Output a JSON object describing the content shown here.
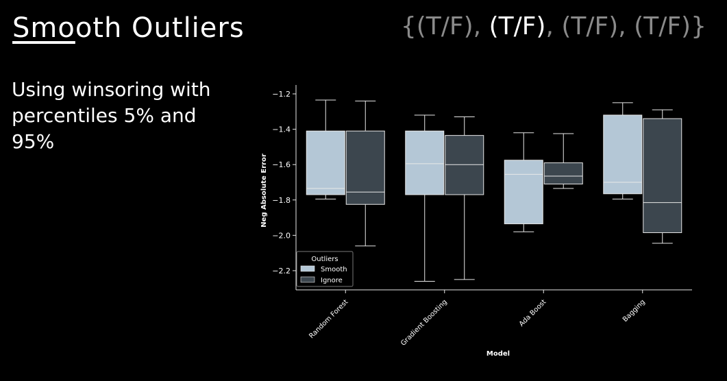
{
  "slide": {
    "title_underlined": "Smo",
    "title_rest": "oth Outliers",
    "flags": [
      {
        "text": "{(T/F), ",
        "highlight": false
      },
      {
        "text": "(T/F)",
        "highlight": true
      },
      {
        "text": ", (T/F), (T/F)}",
        "highlight": false
      }
    ],
    "body": "Using winsoring with percentiles 5% and 95%"
  },
  "colors": {
    "smooth": "#b4c7d6",
    "ignore": "#3c464e",
    "line": "#e8e8e8",
    "text": "#ffffff"
  },
  "chart_data": {
    "type": "boxplot",
    "xlabel": "Model",
    "ylabel": "Neg Absolute Error",
    "categories": [
      "Random Forest",
      "Gradient Boosting",
      "Ada Boost",
      "Bagging"
    ],
    "ylim": [
      -2.28,
      -1.2
    ],
    "yticks": [
      -1.2,
      -1.4,
      -1.6,
      -1.8,
      -2.0,
      -2.2
    ],
    "legend": {
      "title": "Outliers",
      "placement": "lower-left"
    },
    "series": [
      {
        "name": "Smooth",
        "boxes": [
          {
            "whislo": -1.795,
            "q1": -1.77,
            "med": -1.735,
            "q3": -1.41,
            "whishi": -1.235
          },
          {
            "whislo": -2.26,
            "q1": -1.77,
            "med": -1.595,
            "q3": -1.41,
            "whishi": -1.32
          },
          {
            "whislo": -1.98,
            "q1": -1.935,
            "med": -1.655,
            "q3": -1.575,
            "whishi": -1.42
          },
          {
            "whislo": -1.795,
            "q1": -1.765,
            "med": -1.7,
            "q3": -1.32,
            "whishi": -1.25
          }
        ]
      },
      {
        "name": "Ignore",
        "boxes": [
          {
            "whislo": -2.06,
            "q1": -1.825,
            "med": -1.755,
            "q3": -1.41,
            "whishi": -1.24
          },
          {
            "whislo": -2.25,
            "q1": -1.77,
            "med": -1.6,
            "q3": -1.435,
            "whishi": -1.33
          },
          {
            "whislo": -1.735,
            "q1": -1.71,
            "med": -1.665,
            "q3": -1.59,
            "whishi": -1.425
          },
          {
            "whislo": -2.045,
            "q1": -1.985,
            "med": -1.815,
            "q3": -1.34,
            "whishi": -1.29
          }
        ]
      }
    ]
  }
}
